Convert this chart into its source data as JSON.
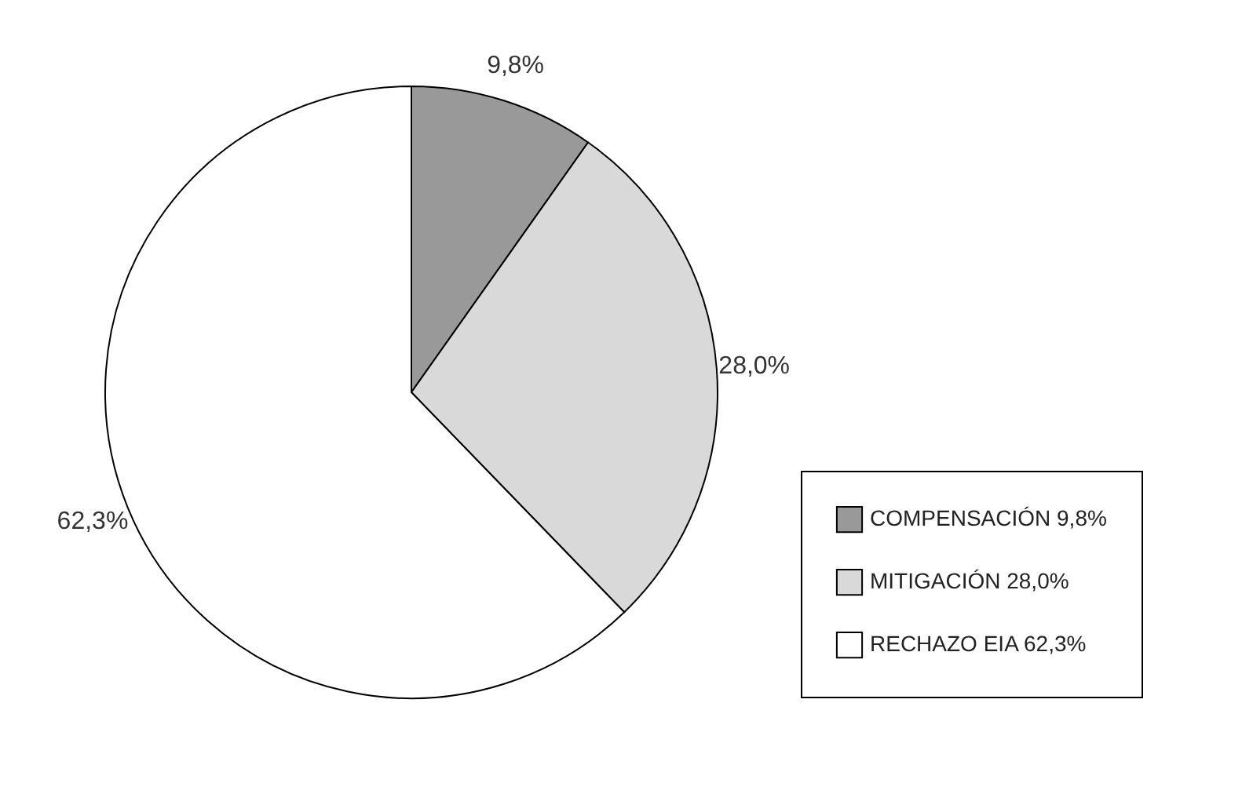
{
  "chart_data": {
    "type": "pie",
    "categories": [
      "COMPENSACIÓN 9,8%",
      "MITIGACIÓN 28,0%",
      "RECHAZO EIA 62,3%"
    ],
    "values": [
      9.8,
      28.0,
      62.3
    ],
    "colors": [
      "#999999",
      "#d9d9d9",
      "#ffffff"
    ],
    "value_labels": [
      "9,8%",
      "28,0%",
      "62,3%"
    ],
    "legend": "bottom right"
  }
}
